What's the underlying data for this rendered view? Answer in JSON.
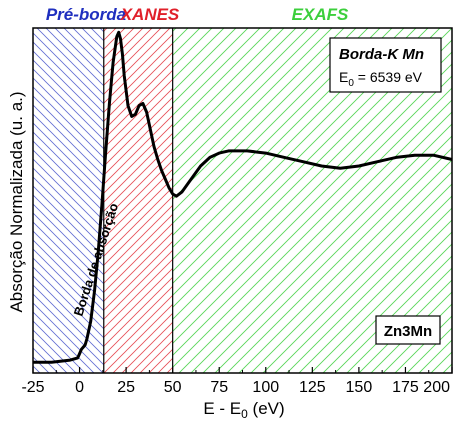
{
  "chart_data": {
    "type": "line",
    "xlabel_main": "E - E",
    "xlabel_sub": "0",
    "xlabel_unit": " (eV)",
    "ylabel": "Absorção Normalizada (u. a.)",
    "xlim": [
      -25,
      200
    ],
    "x_ticks": [
      -25,
      0,
      25,
      50,
      75,
      100,
      125,
      150,
      175,
      200
    ],
    "y_ticks_visible": false,
    "regions": [
      {
        "name": "Pré-borda",
        "from": -25,
        "to": 13,
        "color": "#1f2fbf"
      },
      {
        "name": "XANES",
        "from": 13,
        "to": 50,
        "color": "#e0202a"
      },
      {
        "name": "EXAFS",
        "from": 50,
        "to": 200,
        "color": "#3ccf3c"
      }
    ],
    "annotation_edge": "Borda de absorção",
    "info_box": {
      "title": "Borda-K Mn",
      "line_main": "E",
      "line_sub": "0",
      "line_rest": " = 6539 eV"
    },
    "sample_label": "Zn3Mn",
    "ylim": [
      0,
      1.6
    ],
    "series": [
      {
        "x": [
          -25,
          -15,
          -5,
          -1,
          0,
          1,
          2,
          3,
          4,
          6,
          8,
          10,
          12,
          14,
          16,
          18,
          20,
          21,
          22,
          23,
          24,
          26,
          28,
          30,
          32,
          34,
          36,
          38,
          40,
          42,
          44,
          46,
          48,
          50,
          52,
          55,
          60,
          65,
          70,
          75,
          80,
          90,
          100,
          110,
          120,
          130,
          140,
          150,
          160,
          170,
          180,
          190,
          200
        ],
        "y": [
          0.05,
          0.05,
          0.06,
          0.07,
          0.09,
          0.11,
          0.12,
          0.13,
          0.16,
          0.24,
          0.38,
          0.56,
          0.78,
          1.02,
          1.25,
          1.44,
          1.56,
          1.58,
          1.55,
          1.48,
          1.38,
          1.24,
          1.19,
          1.2,
          1.24,
          1.25,
          1.21,
          1.13,
          1.05,
          0.99,
          0.94,
          0.9,
          0.86,
          0.83,
          0.82,
          0.84,
          0.9,
          0.96,
          1.0,
          1.02,
          1.03,
          1.03,
          1.02,
          1.0,
          0.98,
          0.96,
          0.95,
          0.96,
          0.98,
          1.0,
          1.01,
          1.01,
          0.99
        ]
      }
    ]
  }
}
